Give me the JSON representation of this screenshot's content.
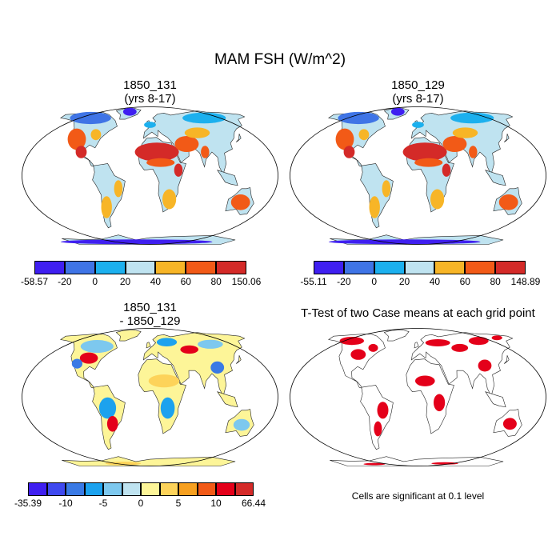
{
  "title": "MAM FSH (W/m^2)",
  "panels": [
    {
      "title_line1": "1850_131",
      "title_line2": "(yrs 8-17)"
    },
    {
      "title_line1": "1850_129",
      "title_line2": "(yrs 8-17)"
    },
    {
      "title_line1": "1850_131",
      "title_line2": "- 1850_129"
    },
    {
      "title_line1": "T-Test of two Case means at each grid point",
      "title_line2": ""
    }
  ],
  "colorbars": [
    {
      "colors": [
        "#3f1ff0",
        "#3f74e6",
        "#1cb0ee",
        "#bfe3f0",
        "#f7b527",
        "#f25a17",
        "#d42a28"
      ],
      "labels": [
        "-58.57",
        "-20",
        "0",
        "20",
        "40",
        "60",
        "80",
        "150.06"
      ]
    },
    {
      "colors": [
        "#3f1ff0",
        "#3f74e6",
        "#1cb0ee",
        "#bfe3f0",
        "#f7b527",
        "#f25a17",
        "#d42a28"
      ],
      "labels": [
        "-55.11",
        "-20",
        "0",
        "20",
        "40",
        "60",
        "80",
        "148.89"
      ]
    },
    {
      "colors": [
        "#3f1ff0",
        "#3f49ef",
        "#3a7ae5",
        "#1ca2ee",
        "#7dc8ee",
        "#bfe3f0",
        "#fdf598",
        "#fdd35a",
        "#f7a020",
        "#f25a17",
        "#e4001a",
        "#d42a28"
      ],
      "labels": [
        "-35.39",
        "-10",
        "-5",
        "0",
        "5",
        "10",
        "66.44"
      ]
    }
  ],
  "significance_note": "Cells are significant at 0.1 level",
  "chart_data": [
    {
      "type": "heatmap",
      "title": "1850_131 (yrs 8-17)",
      "variable": "FSH",
      "season": "MAM",
      "units": "W/m^2",
      "min": -58.57,
      "max": 150.06,
      "levels": [
        -20,
        0,
        20,
        40,
        60,
        80
      ],
      "regions": [
        {
          "region": "Antarctica",
          "level": "-20 to -58.57"
        },
        {
          "region": "Greenland",
          "level": "-20 to -58.57"
        },
        {
          "region": "Boreal North America",
          "level": "-20 to 20"
        },
        {
          "region": "Western US / Mexico",
          "level": "60 to 150"
        },
        {
          "region": "Sahara / Sahel",
          "level": "60 to 150"
        },
        {
          "region": "Middle East / Central Asia",
          "level": "40 to 80"
        },
        {
          "region": "Siberia",
          "level": "0 to 20"
        },
        {
          "region": "Amazon",
          "level": "20 to 40"
        },
        {
          "region": "Australia",
          "level": "40 to 80"
        }
      ]
    },
    {
      "type": "heatmap",
      "title": "1850_129 (yrs 8-17)",
      "variable": "FSH",
      "season": "MAM",
      "units": "W/m^2",
      "min": -55.11,
      "max": 148.89,
      "levels": [
        -20,
        0,
        20,
        40,
        60,
        80
      ]
    },
    {
      "type": "heatmap",
      "title": "1850_131 - 1850_129",
      "variable": "FSH difference",
      "units": "W/m^2",
      "min": -35.39,
      "max": 66.44,
      "levels": [
        -10,
        -5,
        0,
        5,
        10
      ]
    },
    {
      "type": "heatmap",
      "title": "T-Test of two Case means at each grid point",
      "significance_level": 0.1,
      "significant_color": "#e4001a"
    }
  ]
}
